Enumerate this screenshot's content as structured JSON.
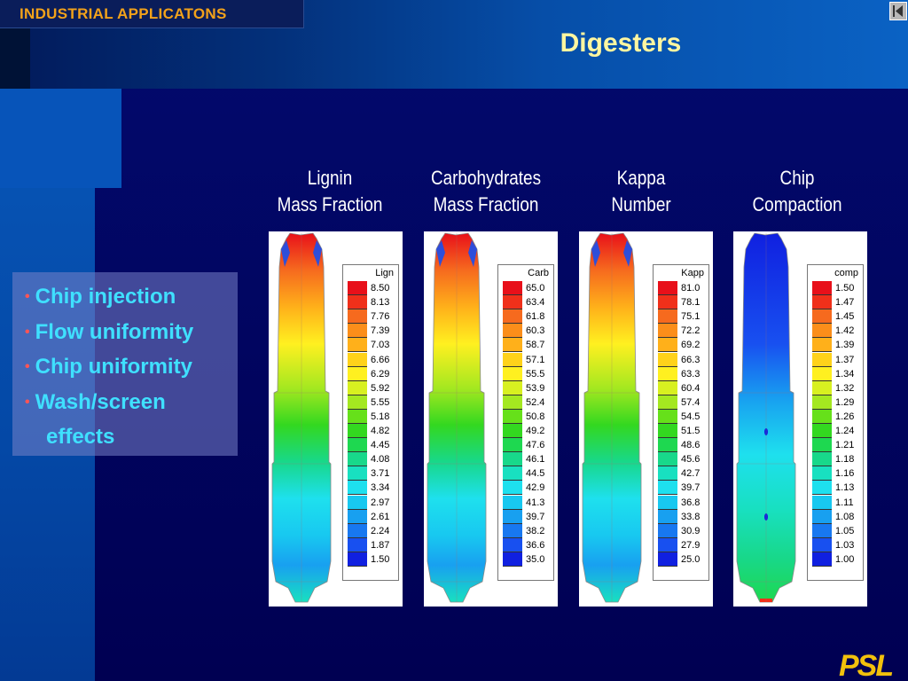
{
  "header": {
    "section_label": "INDUSTRIAL APPLICATONS",
    "title": "Digesters",
    "back_icon": "triangle-left-icon"
  },
  "bullets": [
    {
      "text": "Chip injection"
    },
    {
      "text": "Flow uniformity"
    },
    {
      "text": "Chip uniformity"
    },
    {
      "text": "Wash/screen"
    },
    {
      "text": "effects",
      "continuation": true
    }
  ],
  "panels": [
    {
      "heading": [
        "Lignin",
        "Mass Fraction"
      ],
      "legend_title": "Lign",
      "levels": [
        "8.50",
        "8.13",
        "7.76",
        "7.39",
        "7.03",
        "6.66",
        "6.29",
        "5.92",
        "5.55",
        "5.18",
        "4.82",
        "4.45",
        "4.08",
        "3.71",
        "3.34",
        "2.97",
        "2.61",
        "2.24",
        "1.87",
        "1.50"
      ],
      "profile": "gradient"
    },
    {
      "heading": [
        "Carbohydrates",
        "Mass Fraction"
      ],
      "legend_title": "Carb",
      "levels": [
        "65.0",
        "63.4",
        "61.8",
        "60.3",
        "58.7",
        "57.1",
        "55.5",
        "53.9",
        "52.4",
        "50.8",
        "49.2",
        "47.6",
        "46.1",
        "44.5",
        "42.9",
        "41.3",
        "39.7",
        "38.2",
        "36.6",
        "35.0"
      ],
      "profile": "gradient"
    },
    {
      "heading": [
        "Kappa",
        "Number"
      ],
      "legend_title": "Kapp",
      "levels": [
        "81.0",
        "78.1",
        "75.1",
        "72.2",
        "69.2",
        "66.3",
        "63.3",
        "60.4",
        "57.4",
        "54.5",
        "51.5",
        "48.6",
        "45.6",
        "42.7",
        "39.7",
        "36.8",
        "33.8",
        "30.9",
        "27.9",
        "25.0"
      ],
      "profile": "gradient"
    },
    {
      "heading": [
        "Chip",
        "Compaction"
      ],
      "legend_title": "comp",
      "levels": [
        "1.50",
        "1.47",
        "1.45",
        "1.42",
        "1.39",
        "1.37",
        "1.34",
        "1.32",
        "1.29",
        "1.26",
        "1.24",
        "1.21",
        "1.18",
        "1.16",
        "1.13",
        "1.11",
        "1.08",
        "1.05",
        "1.03",
        "1.00"
      ],
      "profile": "compaction"
    }
  ],
  "colormap": [
    "#e8101a",
    "#f0301a",
    "#f66a1e",
    "#fb8e1a",
    "#ffb01a",
    "#ffd21a",
    "#fff020",
    "#d8f020",
    "#a4e820",
    "#66e01a",
    "#33d820",
    "#1ed850",
    "#18d88a",
    "#18e0c0",
    "#1ee0ee",
    "#18c8f0",
    "#18a0f0",
    "#1878f0",
    "#1850f0",
    "#1020e0"
  ],
  "logo_text": "PSL"
}
